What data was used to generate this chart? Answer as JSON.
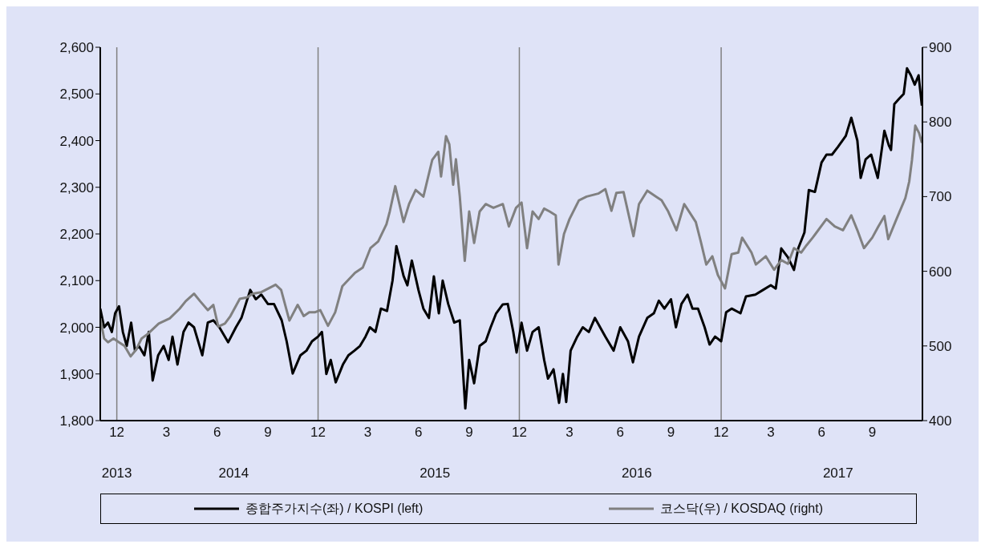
{
  "chart_data": {
    "type": "line",
    "xlim": [
      "2013-11-01",
      "2017-12-01"
    ],
    "xticks": [
      {
        "value": "2013-12-01",
        "label": "12"
      },
      {
        "value": "2014-03-01",
        "label": "3"
      },
      {
        "value": "2014-06-01",
        "label": "6"
      },
      {
        "value": "2014-09-01",
        "label": "9"
      },
      {
        "value": "2014-12-01",
        "label": "12"
      },
      {
        "value": "2015-03-01",
        "label": "3"
      },
      {
        "value": "2015-06-01",
        "label": "6"
      },
      {
        "value": "2015-09-01",
        "label": "9"
      },
      {
        "value": "2015-12-01",
        "label": "12"
      },
      {
        "value": "2016-03-01",
        "label": "3"
      },
      {
        "value": "2016-06-01",
        "label": "6"
      },
      {
        "value": "2016-09-01",
        "label": "9"
      },
      {
        "value": "2016-12-01",
        "label": "12"
      },
      {
        "value": "2017-03-01",
        "label": "3"
      },
      {
        "value": "2017-06-01",
        "label": "6"
      },
      {
        "value": "2017-09-01",
        "label": "9"
      }
    ],
    "x2lim": [
      "2013-11-01",
      "2017-12-01"
    ],
    "x2ticks": [
      {
        "value": "2013-12-01",
        "label": "2013"
      },
      {
        "value": "2014-07-01",
        "label": "2014"
      },
      {
        "value": "2015-07-01",
        "label": "2015"
      },
      {
        "value": "2016-07-01",
        "label": "2016"
      },
      {
        "value": "2017-07-01",
        "label": "2017"
      }
    ],
    "ylim": [
      1800,
      2600
    ],
    "yticks": [
      {
        "value": 1800,
        "label": "1,800"
      },
      {
        "value": 1900,
        "label": "1,900"
      },
      {
        "value": 2000,
        "label": "2,000"
      },
      {
        "value": 2100,
        "label": "2,100"
      },
      {
        "value": 2200,
        "label": "2,200"
      },
      {
        "value": 2300,
        "label": "2,300"
      },
      {
        "value": 2400,
        "label": "2,400"
      },
      {
        "value": 2500,
        "label": "2,500"
      },
      {
        "value": 2600,
        "label": "2,600"
      }
    ],
    "y2lim": [
      400,
      900
    ],
    "y2ticks": [
      400,
      500,
      600,
      700,
      800,
      900
    ],
    "ref_lines": [
      {
        "axis": "x",
        "value": "2013-12-01",
        "color": "#808080"
      },
      {
        "axis": "x",
        "value": "2014-12-01",
        "color": "#808080"
      },
      {
        "axis": "x",
        "value": "2015-12-01",
        "color": "#808080"
      },
      {
        "axis": "x",
        "value": "2016-12-01",
        "color": "#808080"
      }
    ],
    "legend": "bottom",
    "series": [
      {
        "name": "종합주가지수(좌) / KOSPI (left)",
        "color": "#000000",
        "x": [
          "2013-11-01",
          "2013-11-08",
          "2013-11-15",
          "2013-11-22",
          "2013-11-28",
          "2013-12-05",
          "2013-12-12",
          "2013-12-19",
          "2013-12-27",
          "2014-01-03",
          "2014-01-10",
          "2014-01-20",
          "2014-01-28",
          "2014-02-04",
          "2014-02-14",
          "2014-02-24",
          "2014-03-05",
          "2014-03-12",
          "2014-03-21",
          "2014-04-01",
          "2014-04-10",
          "2014-04-20",
          "2014-05-05",
          "2014-05-15",
          "2014-05-25",
          "2014-06-05",
          "2014-06-21",
          "2014-07-05",
          "2014-07-15",
          "2014-07-31",
          "2014-08-10",
          "2014-08-20",
          "2014-09-01",
          "2014-09-12",
          "2014-09-26",
          "2014-10-05",
          "2014-10-16",
          "2014-10-30",
          "2014-11-10",
          "2014-11-20",
          "2014-12-01",
          "2014-12-08",
          "2014-12-16",
          "2014-12-24",
          "2015-01-02",
          "2015-01-15",
          "2015-01-25",
          "2015-02-05",
          "2015-02-15",
          "2015-02-25",
          "2015-03-05",
          "2015-03-15",
          "2015-03-25",
          "2015-04-05",
          "2015-04-15",
          "2015-04-22",
          "2015-05-05",
          "2015-05-12",
          "2015-05-20",
          "2015-06-01",
          "2015-06-10",
          "2015-06-20",
          "2015-06-29",
          "2015-07-08",
          "2015-07-15",
          "2015-07-25",
          "2015-08-05",
          "2015-08-15",
          "2015-08-25",
          "2015-09-01",
          "2015-09-10",
          "2015-09-20",
          "2015-10-01",
          "2015-10-10",
          "2015-10-20",
          "2015-11-01",
          "2015-11-10",
          "2015-11-20",
          "2015-11-26",
          "2015-12-05",
          "2015-12-15",
          "2015-12-25",
          "2016-01-05",
          "2016-01-15",
          "2016-01-22",
          "2016-02-01",
          "2016-02-11",
          "2016-02-18",
          "2016-02-24",
          "2016-03-03",
          "2016-03-15",
          "2016-03-25",
          "2016-04-05",
          "2016-04-16",
          "2016-05-05",
          "2016-05-20",
          "2016-06-01",
          "2016-06-15",
          "2016-06-24",
          "2016-07-05",
          "2016-07-20",
          "2016-08-01",
          "2016-08-10",
          "2016-08-20",
          "2016-09-01",
          "2016-09-10",
          "2016-09-20",
          "2016-10-01",
          "2016-10-10",
          "2016-10-20",
          "2016-11-01",
          "2016-11-10",
          "2016-11-20",
          "2016-12-01",
          "2016-12-10",
          "2016-12-20",
          "2017-01-05",
          "2017-01-15",
          "2017-02-01",
          "2017-02-15",
          "2017-03-01",
          "2017-03-10",
          "2017-03-20",
          "2017-04-01",
          "2017-04-12",
          "2017-04-20",
          "2017-05-01",
          "2017-05-09",
          "2017-05-20",
          "2017-06-01",
          "2017-06-10",
          "2017-06-20",
          "2017-07-01",
          "2017-07-15",
          "2017-07-25",
          "2017-08-05",
          "2017-08-11",
          "2017-08-20",
          "2017-08-30",
          "2017-09-11",
          "2017-09-23",
          "2017-10-01",
          "2017-10-05",
          "2017-10-11",
          "2017-10-20",
          "2017-10-28",
          "2017-11-03",
          "2017-11-10",
          "2017-11-17",
          "2017-11-24",
          "2017-11-30"
        ],
        "values": [
          2040,
          2000,
          2010,
          1990,
          2030,
          2045,
          1990,
          1960,
          2010,
          1950,
          1960,
          1940,
          1990,
          1886,
          1940,
          1960,
          1930,
          1980,
          1920,
          1990,
          2010,
          2000,
          1940,
          2010,
          2015,
          2000,
          1968,
          2000,
          2020,
          2080,
          2060,
          2070,
          2050,
          2050,
          2015,
          1970,
          1901,
          1940,
          1950,
          1970,
          1980,
          1990,
          1900,
          1930,
          1882,
          1920,
          1940,
          1950,
          1960,
          1980,
          2000,
          1990,
          2040,
          2035,
          2100,
          2174,
          2110,
          2090,
          2143,
          2080,
          2040,
          2020,
          2109,
          2030,
          2100,
          2050,
          2010,
          2015,
          1826,
          1930,
          1880,
          1960,
          1970,
          2000,
          2030,
          2049,
          2050,
          1990,
          1946,
          2010,
          1950,
          1990,
          2000,
          1930,
          1890,
          1910,
          1838,
          1900,
          1840,
          1950,
          1980,
          2000,
          1990,
          2020,
          1980,
          1950,
          2000,
          1970,
          1925,
          1980,
          2020,
          2030,
          2057,
          2040,
          2060,
          2000,
          2050,
          2070,
          2040,
          2040,
          2000,
          1963,
          1980,
          1970,
          2032,
          2040,
          2030,
          2066,
          2070,
          2080,
          2090,
          2083,
          2169,
          2150,
          2123,
          2170,
          2203,
          2294,
          2290,
          2353,
          2370,
          2370,
          2387,
          2410,
          2449,
          2400,
          2320,
          2360,
          2370,
          2320,
          2421,
          2390,
          2380,
          2478,
          2490,
          2500,
          2555,
          2540,
          2520,
          2540,
          2475
        ]
      },
      {
        "name": "코스닥(우) / KOSDAQ (right)",
        "color": "#808080",
        "axis": "y2",
        "x": [
          "2013-11-01",
          "2013-11-08",
          "2013-11-15",
          "2013-11-25",
          "2013-12-05",
          "2013-12-15",
          "2013-12-26",
          "2014-01-05",
          "2014-01-15",
          "2014-01-26",
          "2014-02-15",
          "2014-03-07",
          "2014-03-25",
          "2014-04-05",
          "2014-04-20",
          "2014-05-01",
          "2014-05-15",
          "2014-05-25",
          "2014-06-03",
          "2014-06-15",
          "2014-06-25",
          "2014-07-12",
          "2014-07-25",
          "2014-08-05",
          "2014-08-20",
          "2014-09-15",
          "2014-09-25",
          "2014-10-10",
          "2014-10-25",
          "2014-11-05",
          "2014-11-15",
          "2014-11-25",
          "2014-12-05",
          "2014-12-19",
          "2015-01-01",
          "2015-01-14",
          "2015-02-06",
          "2015-02-20",
          "2015-03-06",
          "2015-03-20",
          "2015-04-04",
          "2015-04-10",
          "2015-04-20",
          "2015-05-05",
          "2015-05-15",
          "2015-05-27",
          "2015-06-10",
          "2015-06-26",
          "2015-07-07",
          "2015-07-12",
          "2015-07-21",
          "2015-07-27",
          "2015-08-03",
          "2015-08-08",
          "2015-08-15",
          "2015-08-24",
          "2015-09-01",
          "2015-09-10",
          "2015-09-20",
          "2015-10-01",
          "2015-10-15",
          "2015-11-01",
          "2015-11-12",
          "2015-11-25",
          "2015-12-05",
          "2015-12-15",
          "2015-12-25",
          "2016-01-05",
          "2016-01-15",
          "2016-01-25",
          "2016-02-05",
          "2016-02-10",
          "2016-02-20",
          "2016-03-01",
          "2016-03-18",
          "2016-04-01",
          "2016-04-22",
          "2016-05-05",
          "2016-05-16",
          "2016-05-25",
          "2016-06-07",
          "2016-06-25",
          "2016-07-05",
          "2016-07-20",
          "2016-08-05",
          "2016-08-15",
          "2016-08-27",
          "2016-09-11",
          "2016-09-25",
          "2016-10-16",
          "2016-10-25",
          "2016-11-04",
          "2016-11-15",
          "2016-11-25",
          "2016-12-08",
          "2016-12-20",
          "2017-01-01",
          "2017-01-08",
          "2017-01-25",
          "2017-02-02",
          "2017-02-20",
          "2017-03-07",
          "2017-03-20",
          "2017-04-01",
          "2017-04-12",
          "2017-04-25",
          "2017-05-05",
          "2017-05-16",
          "2017-06-10",
          "2017-06-25",
          "2017-07-10",
          "2017-07-25",
          "2017-08-05",
          "2017-08-17",
          "2017-09-01",
          "2017-09-12",
          "2017-09-23",
          "2017-09-30",
          "2017-10-15",
          "2017-10-31",
          "2017-11-07",
          "2017-11-12",
          "2017-11-18",
          "2017-11-25",
          "2017-11-30"
        ],
        "values": [
          537,
          510,
          505,
          510,
          505,
          500,
          486,
          495,
          510,
          516,
          530,
          537,
          550,
          560,
          570,
          560,
          548,
          555,
          526,
          530,
          540,
          563,
          565,
          570,
          572,
          582,
          575,
          534,
          555,
          540,
          545,
          545,
          548,
          527,
          545,
          580,
          598,
          605,
          631,
          640,
          663,
          680,
          714,
          666,
          690,
          709,
          700,
          749,
          760,
          727,
          781,
          770,
          716,
          750,
          700,
          614,
          680,
          638,
          680,
          690,
          685,
          690,
          660,
          685,
          692,
          631,
          680,
          670,
          684,
          680,
          675,
          609,
          650,
          670,
          695,
          700,
          704,
          710,
          681,
          705,
          706,
          647,
          690,
          708,
          700,
          695,
          680,
          655,
          690,
          666,
          640,
          609,
          620,
          595,
          577,
          623,
          625,
          645,
          625,
          609,
          620,
          602,
          615,
          610,
          631,
          625,
          635,
          645,
          670,
          660,
          655,
          675,
          655,
          631,
          645,
          660,
          674,
          643,
          670,
          698,
          720,
          749,
          795,
          785,
          772
        ]
      }
    ]
  }
}
